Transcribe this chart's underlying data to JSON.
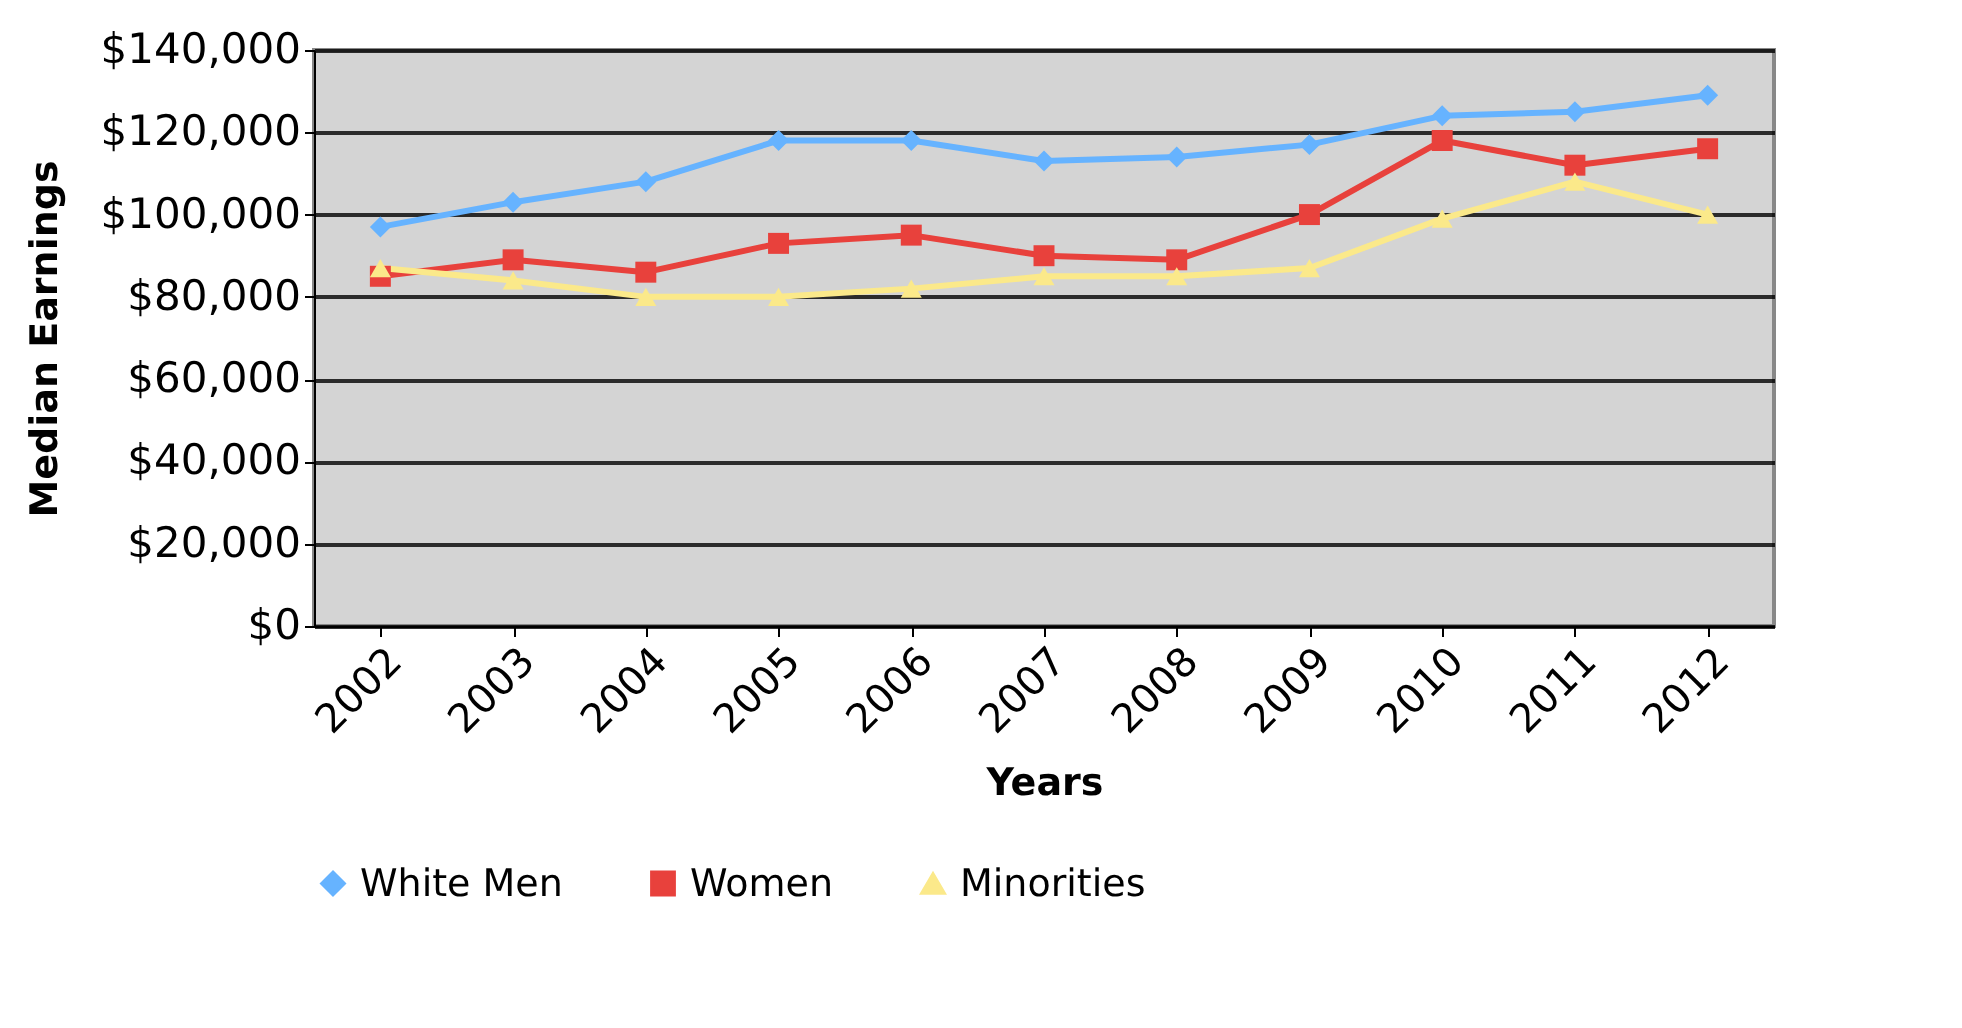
{
  "chart_data": {
    "type": "line",
    "xlabel": "Years",
    "ylabel": "Median Earnings",
    "categories": [
      "2002",
      "2003",
      "2004",
      "2005",
      "2006",
      "2007",
      "2008",
      "2009",
      "2010",
      "2011",
      "2012"
    ],
    "series": [
      {
        "name": "White Men",
        "color": "#66b3ff",
        "marker": "diamond",
        "values": [
          97000,
          103000,
          108000,
          118000,
          118000,
          113000,
          114000,
          117000,
          124000,
          125000,
          129000
        ]
      },
      {
        "name": "Women",
        "color": "#e8413c",
        "marker": "square",
        "values": [
          85000,
          89000,
          86000,
          93000,
          95000,
          90000,
          89000,
          100000,
          118000,
          112000,
          116000
        ]
      },
      {
        "name": "Minorities",
        "color": "#fbe98a",
        "marker": "triangle",
        "values": [
          87000,
          84000,
          80000,
          80000,
          82000,
          85000,
          85000,
          87000,
          99000,
          108000,
          100000
        ]
      }
    ],
    "ylim": [
      0,
      140000
    ],
    "yticks": [
      {
        "value": 0,
        "label": "$0"
      },
      {
        "value": 20000,
        "label": "$20,000"
      },
      {
        "value": 40000,
        "label": "$40,000"
      },
      {
        "value": 60000,
        "label": "$60,000"
      },
      {
        "value": 80000,
        "label": "$80,000"
      },
      {
        "value": 100000,
        "label": "$100,000"
      },
      {
        "value": 120000,
        "label": "$120,000"
      },
      {
        "value": 140000,
        "label": "$140,000"
      }
    ],
    "grid": "y",
    "legend": "bottom"
  }
}
